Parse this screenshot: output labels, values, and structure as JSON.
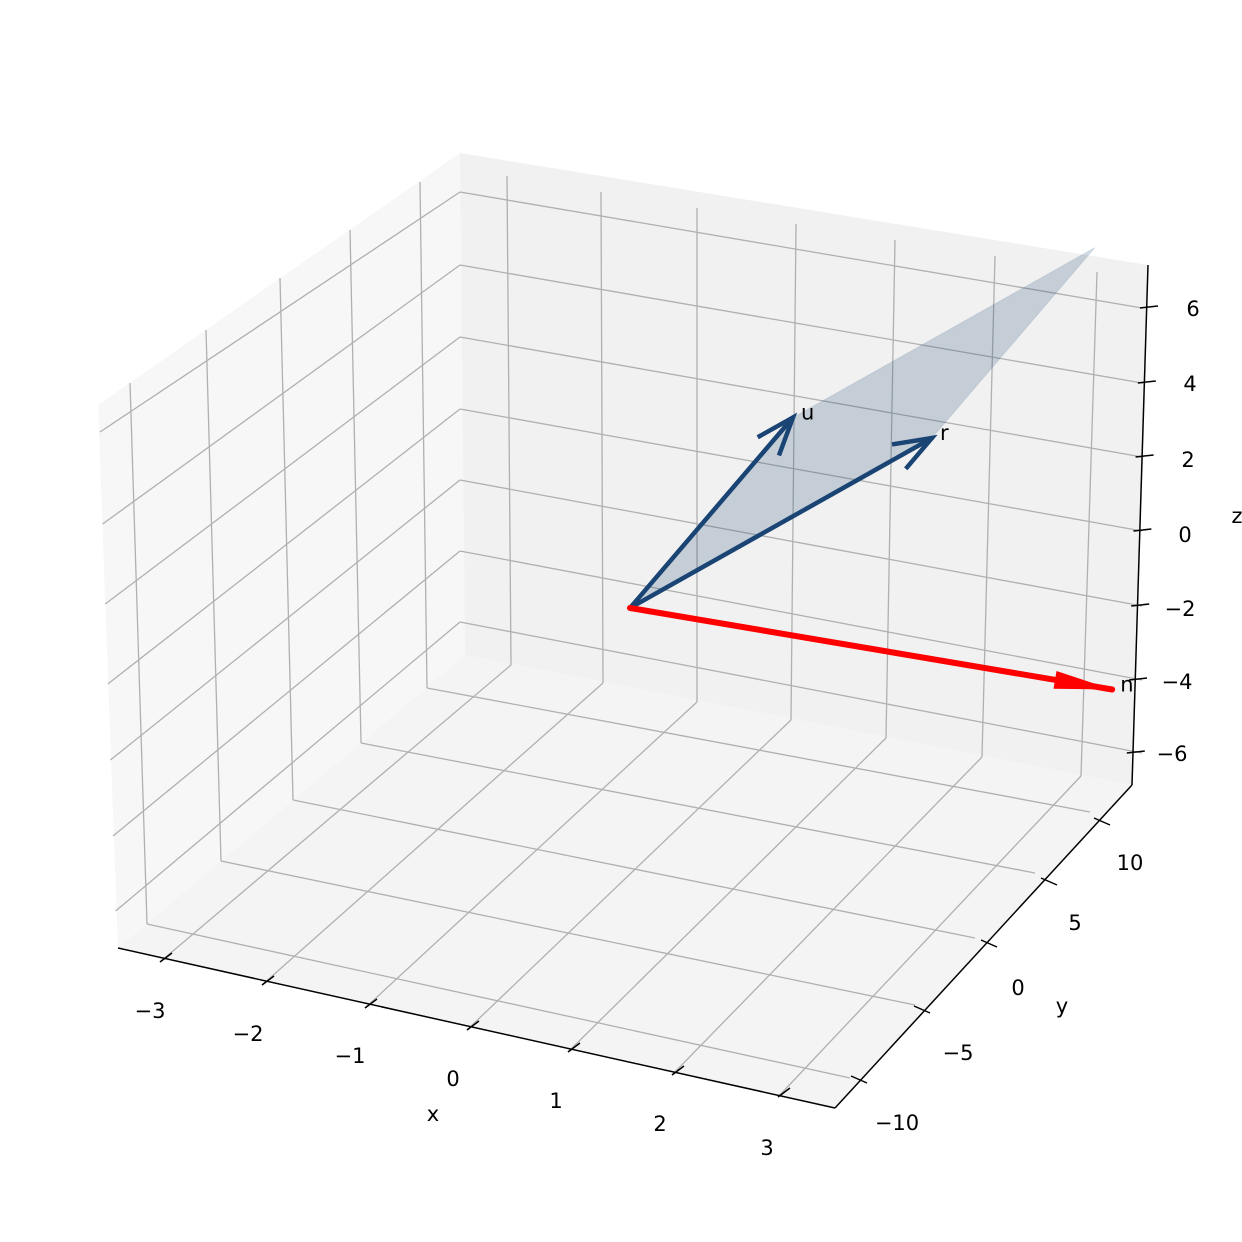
{
  "chart_data": {
    "type": "3d-quiver",
    "title": "",
    "xlabel": "x",
    "ylabel": "y",
    "zlabel": "z",
    "xlim": [
      -3.3,
      3.3
    ],
    "ylim": [
      -12,
      12
    ],
    "zlim": [
      -7,
      7
    ],
    "grid": true,
    "x_ticks": [
      "−3",
      "−2",
      "−1",
      "0",
      "1",
      "2",
      "3"
    ],
    "y_ticks": [
      "10",
      "5",
      "0",
      "−5",
      "−10"
    ],
    "z_ticks": [
      "6",
      "4",
      "2",
      "0",
      "−2",
      "−4",
      "−6"
    ],
    "vectors": [
      {
        "name": "u",
        "origin": [
          0,
          0,
          0
        ],
        "components": [
          1,
          5,
          4
        ],
        "color": "#1a4473"
      },
      {
        "name": "r",
        "origin": [
          0,
          0,
          0
        ],
        "components": [
          2,
          8,
          3
        ],
        "color": "#1a4473"
      },
      {
        "name": "n",
        "origin": [
          0,
          0,
          0
        ],
        "components": [
          3.4,
          11,
          -4
        ],
        "color": "#ff0000"
      }
    ],
    "plane": {
      "spanned_by": [
        "u",
        "r"
      ],
      "color": "#1a4473",
      "opacity": 0.2
    }
  }
}
